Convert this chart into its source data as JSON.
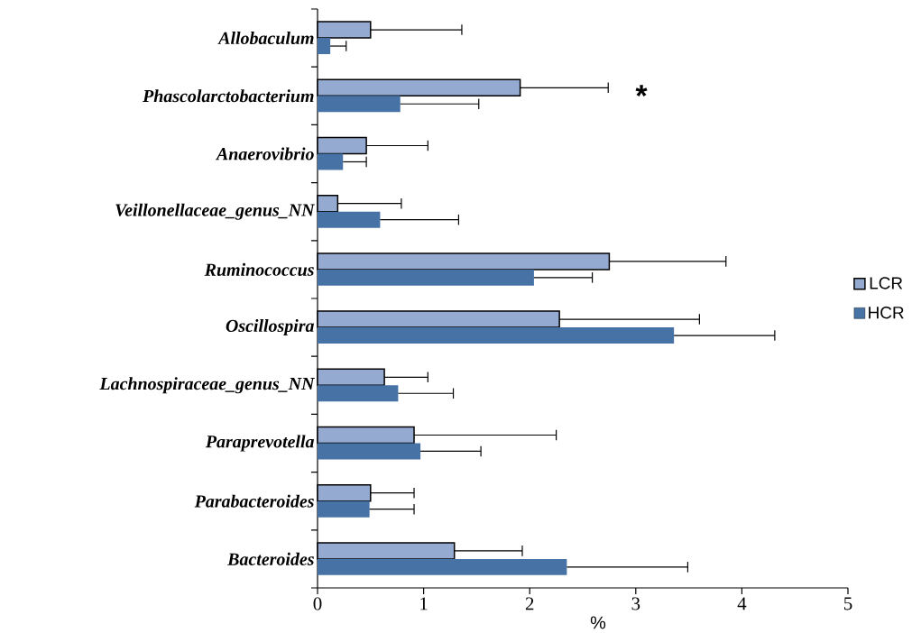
{
  "chart_data": {
    "type": "bar",
    "orientation": "horizontal",
    "xlabel": "%",
    "categories": [
      "Allobaculum",
      "Phascolarctobacterium",
      "Anaerovibrio",
      "Veillonellaceae_genus_NN",
      "Ruminococcus",
      "Oscillospira",
      "Lachnospiraceae_genus_NN",
      "Paraprevotella",
      "Parabacteroides",
      "Bacteroides"
    ],
    "series": [
      {
        "name": "LCR",
        "color": "#95aad1",
        "values": [
          0.5,
          1.91,
          0.46,
          0.19,
          2.75,
          2.28,
          0.63,
          0.91,
          0.5,
          1.29
        ],
        "errors": [
          [
            0.5,
            1.36
          ],
          [
            1.91,
            2.74
          ],
          [
            0.46,
            1.04
          ],
          [
            0.19,
            0.79
          ],
          [
            2.75,
            3.85
          ],
          [
            2.28,
            3.6
          ],
          [
            0.63,
            1.04
          ],
          [
            0.91,
            2.25
          ],
          [
            0.5,
            0.91
          ],
          [
            1.29,
            1.93
          ]
        ]
      },
      {
        "name": "HCR",
        "color": "#4672a6",
        "values": [
          0.12,
          0.78,
          0.24,
          0.59,
          2.04,
          3.36,
          0.76,
          0.97,
          0.49,
          2.35
        ],
        "errors": [
          [
            0.12,
            0.27
          ],
          [
            0.78,
            1.52
          ],
          [
            0.24,
            0.46
          ],
          [
            0.59,
            1.33
          ],
          [
            2.04,
            2.59
          ],
          [
            3.36,
            4.31
          ],
          [
            0.76,
            1.28
          ],
          [
            0.97,
            1.54
          ],
          [
            0.49,
            0.91
          ],
          [
            2.35,
            3.49
          ]
        ]
      }
    ],
    "xlim": [
      0,
      5
    ],
    "xticks": [
      0,
      1,
      2,
      3,
      4,
      5
    ],
    "annotations": [
      "*"
    ],
    "legend": "right",
    "grid": false
  }
}
